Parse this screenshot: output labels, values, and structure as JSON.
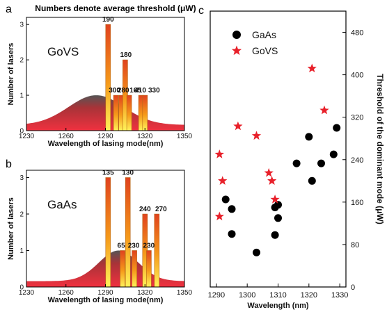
{
  "header_note": "Numbers denote average threshold (μW)",
  "panel_labels": {
    "a": "a",
    "b": "b",
    "c": "c"
  },
  "chart_data": [
    {
      "type": "bar",
      "panel": "a",
      "material_label": "GoVS",
      "xlabel": "Wavelength of lasing mode(nm)",
      "ylabel": "Number of lasers",
      "xlim": [
        1230,
        1350
      ],
      "ylim": [
        0,
        3.2
      ],
      "xticks": [
        1230,
        1260,
        1290,
        1320,
        1350
      ],
      "yticks": [
        0,
        1,
        2,
        3
      ],
      "bars": [
        {
          "x": 1292,
          "value": 3,
          "label": "190"
        },
        {
          "x": 1298,
          "value": 1,
          "label": "300"
        },
        {
          "x": 1302,
          "value": 1,
          "label": "280"
        },
        {
          "x": 1305,
          "value": 2,
          "label": "180"
        },
        {
          "x": 1308,
          "value": 1,
          "label": "165"
        },
        {
          "x": 1317,
          "value": 1,
          "label": "410"
        },
        {
          "x": 1320,
          "value": 1,
          "label": "330"
        }
      ],
      "distribution": {
        "center": 1283,
        "sigma": 21,
        "peak": 1.0
      }
    },
    {
      "type": "bar",
      "panel": "b",
      "material_label": "GaAs",
      "xlabel": "Wavelength of lasing mode(nm)",
      "ylabel": "Number of lasers",
      "xlim": [
        1230,
        1350
      ],
      "ylim": [
        0,
        3.2
      ],
      "xticks": [
        1230,
        1260,
        1290,
        1320,
        1350
      ],
      "yticks": [
        0,
        1,
        2,
        3
      ],
      "bars": [
        {
          "x": 1292,
          "value": 3,
          "label": "135"
        },
        {
          "x": 1303,
          "value": 1,
          "label": "65"
        },
        {
          "x": 1307,
          "value": 3,
          "label": "130"
        },
        {
          "x": 1312,
          "value": 1,
          "label": "230"
        },
        {
          "x": 1320,
          "value": 2,
          "label": "240"
        },
        {
          "x": 1323,
          "value": 1,
          "label": "230"
        },
        {
          "x": 1329,
          "value": 2,
          "label": "270"
        }
      ],
      "distribution": {
        "center": 1300,
        "sigma": 15,
        "peak": 1.0
      }
    },
    {
      "type": "scatter",
      "panel": "c",
      "xlabel": "Wavelength (nm)",
      "ylabel": "Threshold of the dominant mode (μW)",
      "xlim": [
        1288,
        1332
      ],
      "ylim": [
        0,
        520
      ],
      "xticks": [
        1290,
        1300,
        1310,
        1320,
        1330
      ],
      "yticks": [
        0,
        80,
        160,
        240,
        320,
        400,
        480
      ],
      "legend_position": "top-left",
      "series": [
        {
          "name": "GaAs",
          "marker": "circle",
          "color": "#000000",
          "points": [
            [
              1293,
              165
            ],
            [
              1295,
              147
            ],
            [
              1295,
              100
            ],
            [
              1303,
              65
            ],
            [
              1309,
              150
            ],
            [
              1310,
              155
            ],
            [
              1310,
              130
            ],
            [
              1309,
              98
            ],
            [
              1316,
              233
            ],
            [
              1320,
              283
            ],
            [
              1321,
              200
            ],
            [
              1324,
              233
            ],
            [
              1328,
              250
            ],
            [
              1329,
              300
            ]
          ]
        },
        {
          "name": "GoVS",
          "marker": "star",
          "color": "#e8202a",
          "points": [
            [
              1291,
              250
            ],
            [
              1292,
              200
            ],
            [
              1291,
              133
            ],
            [
              1297,
              303
            ],
            [
              1303,
              285
            ],
            [
              1307,
              215
            ],
            [
              1308,
              200
            ],
            [
              1309,
              165
            ],
            [
              1321,
              412
            ],
            [
              1325,
              333
            ]
          ]
        }
      ]
    }
  ]
}
